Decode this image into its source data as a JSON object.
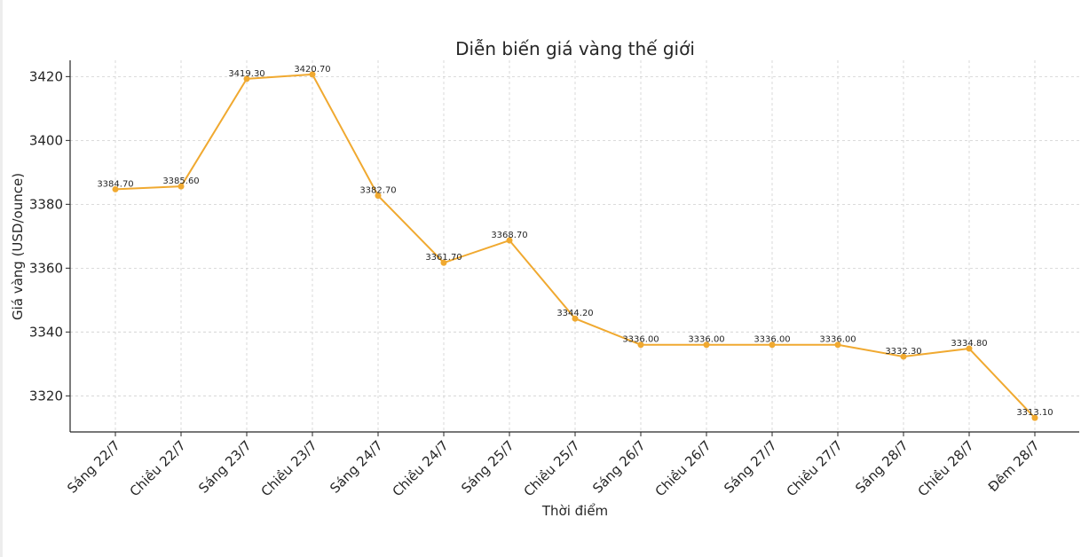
{
  "chart_data": {
    "type": "line",
    "title": "Diễn biến giá vàng thế giới",
    "xlabel": "Thời điểm",
    "ylabel": "Giá vàng (USD/ounce)",
    "categories": [
      "Sáng 22/7",
      "Chiều 22/7",
      "Sáng 23/7",
      "Chiều 23/7",
      "Sáng 24/7",
      "Chiều 24/7",
      "Sáng 25/7",
      "Chiều 25/7",
      "Sáng 26/7",
      "Chiều 26/7",
      "Sáng 27/7",
      "Chiều 27/7",
      "Sáng 28/7",
      "Chiều 28/7",
      "Đêm 28/7"
    ],
    "values": [
      3384.7,
      3385.6,
      3419.3,
      3420.7,
      3382.7,
      3361.7,
      3368.7,
      3344.2,
      3336.0,
      3336.0,
      3336.0,
      3336.0,
      3332.3,
      3334.8,
      3313.1
    ],
    "data_labels": [
      "3384.70",
      "3385.60",
      "3419.30",
      "3420.70",
      "3382.70",
      "3361.70",
      "3368.70",
      "3344.20",
      "3336.00",
      "3336.00",
      "3336.00",
      "3336.00",
      "3332.30",
      "3334.80",
      "3313.10"
    ],
    "yticks": [
      3320,
      3340,
      3360,
      3380,
      3400,
      3420
    ],
    "ylim": [
      3308.7,
      3425.1
    ],
    "grid": true,
    "line_color": "#f0a930"
  }
}
